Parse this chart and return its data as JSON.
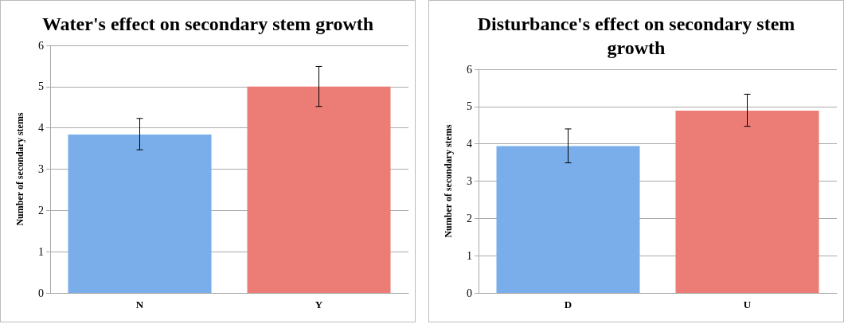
{
  "chart_data": [
    {
      "type": "bar",
      "title": "Water's effect on secondary stem growth",
      "ylabel": "Number of secondary stems",
      "categories": [
        "N",
        "Y"
      ],
      "values": [
        3.84,
        5.0
      ],
      "colors": [
        "#7aaeea",
        "#ec7d76"
      ],
      "errors": [
        [
          3.47,
          4.23
        ],
        [
          4.52,
          5.49
        ]
      ],
      "ylim": [
        0,
        6
      ],
      "yticks": [
        0,
        1,
        2,
        3,
        4,
        5,
        6
      ],
      "grid": "y"
    },
    {
      "type": "bar",
      "title": "Disturbance's effect on secondary stem growth",
      "ylabel": "Number of secondary stems",
      "categories": [
        "D",
        "U"
      ],
      "values": [
        3.94,
        4.89
      ],
      "colors": [
        "#7aaeea",
        "#ec7d76"
      ],
      "errors": [
        [
          3.49,
          4.4
        ],
        [
          4.47,
          5.33
        ]
      ],
      "ylim": [
        0,
        6
      ],
      "yticks": [
        0,
        1,
        2,
        3,
        4,
        5,
        6
      ],
      "grid": "y"
    }
  ]
}
